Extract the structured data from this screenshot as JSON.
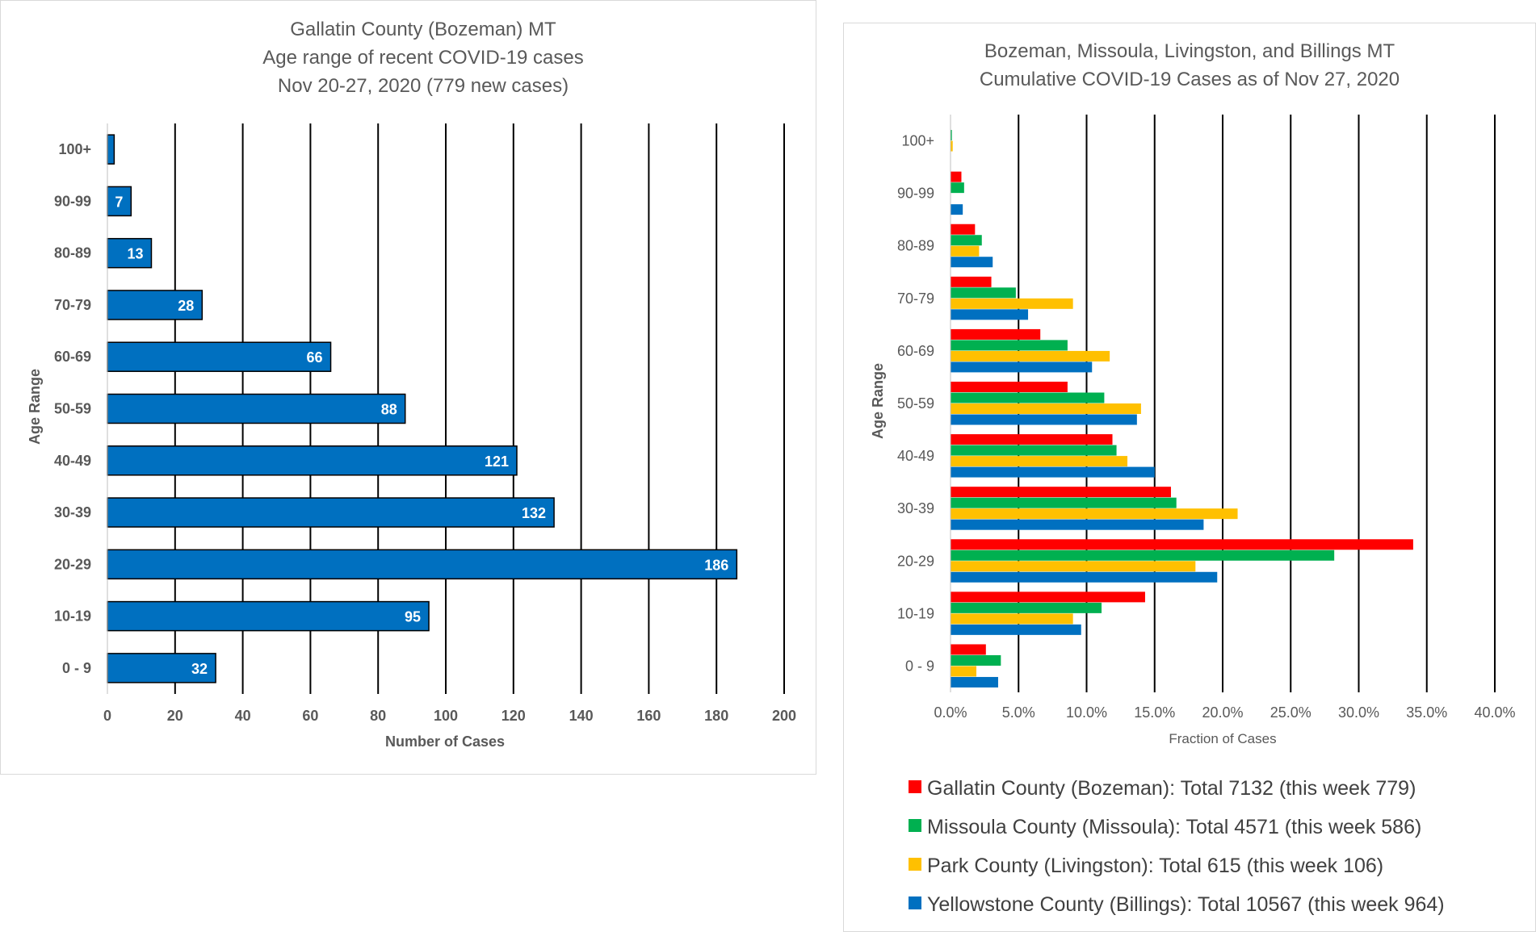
{
  "chart_data": [
    {
      "type": "bar",
      "orientation": "horizontal",
      "title": [
        "Gallatin County (Bozeman) MT",
        "Age range of recent COVID-19 cases",
        "Nov 20-27, 2020 (779 new cases)"
      ],
      "xlabel": "Number of Cases",
      "ylabel": "Age Range",
      "categories": [
        "0 - 9",
        "10-19",
        "20-29",
        "30-39",
        "40-49",
        "50-59",
        "60-69",
        "70-79",
        "80-89",
        "90-99",
        "100+"
      ],
      "values": [
        32,
        95,
        186,
        132,
        121,
        88,
        66,
        28,
        13,
        7,
        2
      ],
      "data_labels": [
        "32",
        "95",
        "186",
        "132",
        "121",
        "88",
        "66",
        "28",
        "13",
        "7",
        ""
      ],
      "xlim": [
        0,
        200
      ],
      "xticks": [
        0,
        20,
        40,
        60,
        80,
        100,
        120,
        140,
        160,
        180,
        200
      ],
      "xtick_labels": [
        "0",
        "20",
        "40",
        "60",
        "80",
        "100",
        "120",
        "140",
        "160",
        "180",
        "200"
      ],
      "grid": "vertical",
      "bar_color": "#0070c0"
    },
    {
      "type": "bar",
      "orientation": "horizontal",
      "title": [
        "Bozeman, Missoula, Livingston, and Billings MT",
        "Cumulative COVID-19 Cases as of Nov 27, 2020"
      ],
      "xlabel": "Fraction of Cases",
      "ylabel": "Age Range",
      "categories": [
        "0 - 9",
        "10-19",
        "20-29",
        "30-39",
        "40-49",
        "50-59",
        "60-69",
        "70-79",
        "80-89",
        "90-99",
        "100+"
      ],
      "series": [
        {
          "name": "Gallatin County (Bozeman): Total 7132 (this week 779)",
          "color": "#ff0000",
          "values": [
            2.6,
            14.3,
            34.0,
            16.2,
            11.9,
            8.6,
            6.6,
            3.0,
            1.8,
            0.8,
            0.0
          ]
        },
        {
          "name": "Missoula County (Missoula): Total 4571 (this week 586)",
          "color": "#00b050",
          "values": [
            3.7,
            11.1,
            28.2,
            16.6,
            12.2,
            11.3,
            8.6,
            4.8,
            2.3,
            1.0,
            0.1
          ]
        },
        {
          "name": "Park County (Livingston): Total 615 (this week 106)",
          "color": "#ffc000",
          "values": [
            1.9,
            9.0,
            18.0,
            21.1,
            13.0,
            14.0,
            11.7,
            9.0,
            2.1,
            0.0,
            0.16
          ]
        },
        {
          "name": "Yellowstone County (Billings): Total 10567 (this week 964)",
          "color": "#0070c0",
          "values": [
            3.5,
            9.6,
            19.6,
            18.6,
            15.0,
            13.7,
            10.4,
            5.7,
            3.1,
            0.9,
            0.0
          ]
        }
      ],
      "xlim": [
        0,
        40
      ],
      "xticks": [
        0,
        5,
        10,
        15,
        20,
        25,
        30,
        35,
        40
      ],
      "xtick_labels": [
        "0.0%",
        "5.0%",
        "10.0%",
        "15.0%",
        "20.0%",
        "25.0%",
        "30.0%",
        "35.0%",
        "40.0%"
      ],
      "grid": "vertical",
      "legend_position": "bottom"
    }
  ]
}
